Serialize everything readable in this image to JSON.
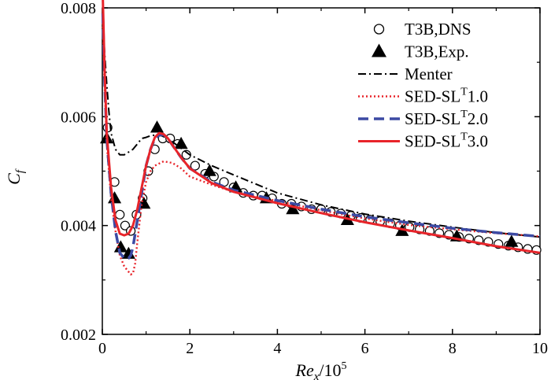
{
  "chart_data": {
    "type": "line",
    "title": "",
    "xlabel": {
      "base": "Re",
      "sub": "x",
      "rest": "/10",
      "sup": "5"
    },
    "ylabel": {
      "base": "C",
      "sub": "f"
    },
    "xlim": [
      0,
      10
    ],
    "ylim": [
      0.002,
      0.008
    ],
    "xticks": [
      0,
      2,
      4,
      6,
      8,
      10
    ],
    "yticks": [
      0.002,
      0.004,
      0.006,
      0.008
    ],
    "xtick_labels": [
      "0",
      "2",
      "4",
      "6",
      "8",
      "10"
    ],
    "ytick_labels": [
      "0.002",
      "0.004",
      "0.006",
      "0.008"
    ],
    "legend_position": "top-right",
    "series": [
      {
        "name": "T3B,DNS",
        "legend": {
          "main": "T3B,DNS",
          "sup": "",
          "tail": ""
        },
        "style": "open-circle",
        "color": "#000000",
        "x": [
          0.12,
          0.28,
          0.4,
          0.52,
          0.65,
          0.78,
          0.92,
          1.05,
          1.2,
          1.38,
          1.55,
          1.72,
          1.92,
          2.12,
          2.35,
          2.55,
          2.78,
          3.0,
          3.22,
          3.45,
          3.65,
          3.88,
          4.1,
          4.32,
          4.55,
          4.78,
          5.0,
          5.22,
          5.45,
          5.68,
          5.9,
          6.12,
          6.35,
          6.58,
          6.8,
          7.02,
          7.25,
          7.48,
          7.7,
          7.92,
          8.15,
          8.38,
          8.6,
          8.82,
          9.05,
          9.28,
          9.5,
          9.72,
          9.92
        ],
        "y": [
          0.0058,
          0.0048,
          0.0042,
          0.004,
          0.0039,
          0.0042,
          0.0045,
          0.005,
          0.0054,
          0.0056,
          0.0056,
          0.0055,
          0.0053,
          0.0051,
          0.00495,
          0.0049,
          0.0048,
          0.0047,
          0.0046,
          0.00455,
          0.00455,
          0.0045,
          0.0044,
          0.0044,
          0.00435,
          0.0043,
          0.0043,
          0.00425,
          0.00422,
          0.00418,
          0.00414,
          0.00411,
          0.00408,
          0.00404,
          0.004,
          0.00397,
          0.00393,
          0.0039,
          0.00386,
          0.00383,
          0.00379,
          0.00376,
          0.00373,
          0.0037,
          0.00366,
          0.00363,
          0.0036,
          0.00357,
          0.00355
        ]
      },
      {
        "name": "T3B,Exp.",
        "legend": {
          "main": "T3B,Exp.",
          "sup": "",
          "tail": ""
        },
        "style": "filled-triangle",
        "color": "#000000",
        "x": [
          0.1,
          0.28,
          0.42,
          0.6,
          0.95,
          1.25,
          1.8,
          2.45,
          3.05,
          3.75,
          4.35,
          5.6,
          6.85,
          8.1,
          9.35
        ],
        "y": [
          0.0056,
          0.0045,
          0.0036,
          0.00348,
          0.0044,
          0.0058,
          0.0055,
          0.005,
          0.0047,
          0.0045,
          0.0043,
          0.0041,
          0.0039,
          0.0038,
          0.0037
        ]
      },
      {
        "name": "Menter",
        "legend": {
          "main": "Menter",
          "sup": "",
          "tail": ""
        },
        "style": "dashdot",
        "color": "#000000",
        "x": [
          0.01,
          0.05,
          0.1,
          0.15,
          0.2,
          0.3,
          0.4,
          0.5,
          0.6,
          0.7,
          0.8,
          0.9,
          1.0,
          1.1,
          1.2,
          1.35,
          1.5,
          1.7,
          2.0,
          2.5,
          3.0,
          4.0,
          5.0,
          6.0,
          7.0,
          8.0,
          9.0,
          10.0
        ],
        "y": [
          0.0079,
          0.0072,
          0.0066,
          0.0061,
          0.0057,
          0.0054,
          0.0053,
          0.0053,
          0.00535,
          0.0054,
          0.0055,
          0.0056,
          0.00562,
          0.00565,
          0.00566,
          0.00565,
          0.0056,
          0.00548,
          0.0053,
          0.0051,
          0.00493,
          0.0046,
          0.00438,
          0.00421,
          0.00408,
          0.00397,
          0.00387,
          0.00379
        ]
      },
      {
        "name": "SED-SL^T1.0",
        "legend": {
          "main": "SED-SL",
          "sup": "T",
          "tail": "1.0"
        },
        "style": "dotted",
        "color": "#e8242a",
        "x": [
          0.01,
          0.05,
          0.1,
          0.2,
          0.3,
          0.4,
          0.5,
          0.6,
          0.65,
          0.7,
          0.75,
          0.8,
          0.9,
          1.0,
          1.1,
          1.2,
          1.4,
          1.6,
          1.8,
          2.0,
          2.5,
          3.0,
          4.0,
          5.0,
          6.0,
          7.0,
          8.0,
          9.0,
          10.0
        ],
        "y": [
          0.0078,
          0.0066,
          0.0055,
          0.0045,
          0.0039,
          0.00345,
          0.00325,
          0.00315,
          0.0031,
          0.00312,
          0.0033,
          0.0037,
          0.0044,
          0.0048,
          0.005,
          0.0051,
          0.00518,
          0.00515,
          0.00505,
          0.0049,
          0.00475,
          0.00462,
          0.00445,
          0.00428,
          0.00413,
          0.00401,
          0.00393,
          0.00386,
          0.0038
        ]
      },
      {
        "name": "SED-SL^T2.0",
        "legend": {
          "main": "SED-SL",
          "sup": "T",
          "tail": "2.0"
        },
        "style": "dashed",
        "color": "#3c4aa3",
        "x": [
          0.01,
          0.05,
          0.1,
          0.2,
          0.3,
          0.4,
          0.5,
          0.55,
          0.6,
          0.65,
          0.7,
          0.8,
          0.9,
          1.0,
          1.1,
          1.2,
          1.3,
          1.4,
          1.5,
          1.6,
          1.8,
          2.0,
          2.5,
          3.0,
          4.0,
          5.0,
          6.0,
          7.0,
          8.0,
          9.0,
          10.0
        ],
        "y": [
          0.0079,
          0.0067,
          0.0056,
          0.0046,
          0.0039,
          0.0035,
          0.0034,
          0.00338,
          0.0034,
          0.00345,
          0.0036,
          0.0041,
          0.0046,
          0.0051,
          0.0054,
          0.0056,
          0.00566,
          0.00567,
          0.0056,
          0.00548,
          0.00525,
          0.00505,
          0.0048,
          0.00465,
          0.00446,
          0.0043,
          0.00416,
          0.00405,
          0.00395,
          0.00387,
          0.0038
        ]
      },
      {
        "name": "SED-SL^T3.0",
        "legend": {
          "main": "SED-SL",
          "sup": "T",
          "tail": "3.0"
        },
        "style": "solid",
        "color": "#e8242a",
        "x": [
          0.01,
          0.05,
          0.1,
          0.2,
          0.3,
          0.4,
          0.5,
          0.6,
          0.7,
          0.8,
          0.9,
          1.0,
          1.1,
          1.2,
          1.3,
          1.4,
          1.5,
          1.6,
          1.8,
          2.0,
          2.5,
          3.0,
          4.0,
          5.0,
          6.0,
          7.0,
          8.0,
          9.0,
          10.0
        ],
        "y": [
          0.0082,
          0.0069,
          0.0057,
          0.0047,
          0.0041,
          0.00385,
          0.00382,
          0.00385,
          0.004,
          0.0043,
          0.0047,
          0.0051,
          0.0054,
          0.00562,
          0.0057,
          0.00568,
          0.0056,
          0.00548,
          0.00525,
          0.00505,
          0.00478,
          0.00462,
          0.00441,
          0.00423,
          0.00406,
          0.00391,
          0.00377,
          0.00362,
          0.0035
        ]
      }
    ]
  }
}
